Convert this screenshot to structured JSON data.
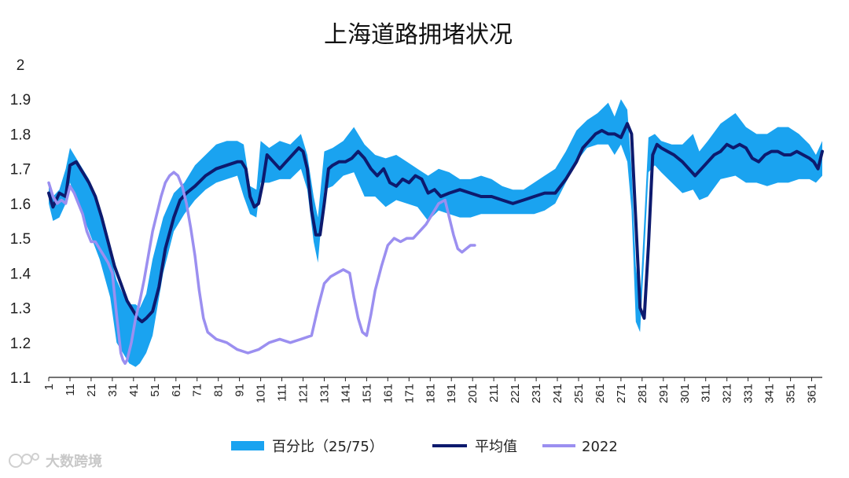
{
  "chart_data": {
    "type": "line",
    "title": "上海道路拥堵状况",
    "xlabel": "",
    "ylabel": "",
    "x_range": [
      1,
      366
    ],
    "ylim": [
      1.1,
      2.0
    ],
    "y_ticks": [
      "1.1",
      "1.2",
      "1.3",
      "1.4",
      "1.5",
      "1.6",
      "1.7",
      "1.8",
      "1.9",
      "2"
    ],
    "x_ticks": [
      "1",
      "11",
      "21",
      "31",
      "41",
      "51",
      "61",
      "71",
      "81",
      "91",
      "101",
      "111",
      "121",
      "131",
      "141",
      "151",
      "161",
      "171",
      "181",
      "191",
      "201",
      "211",
      "221",
      "231",
      "241",
      "251",
      "261",
      "271",
      "281",
      "291",
      "301",
      "311",
      "321",
      "331",
      "341",
      "351",
      "361"
    ],
    "grid": false,
    "legend_position": "bottom",
    "series": [
      {
        "name": "百分比（25/75）",
        "kind": "band",
        "color": "#1aa3f0",
        "x": [
          1,
          3,
          6,
          9,
          11,
          15,
          20,
          25,
          30,
          33,
          36,
          39,
          42,
          44,
          47,
          50,
          55,
          60,
          65,
          70,
          75,
          80,
          85,
          90,
          93,
          96,
          99,
          101,
          105,
          110,
          115,
          120,
          123,
          126,
          128,
          131,
          135,
          140,
          145,
          150,
          155,
          160,
          165,
          170,
          175,
          180,
          185,
          190,
          195,
          200,
          205,
          210,
          215,
          220,
          225,
          230,
          235,
          240,
          245,
          250,
          255,
          260,
          265,
          268,
          271,
          274,
          276,
          278,
          280,
          282,
          284,
          287,
          290,
          295,
          300,
          305,
          308,
          312,
          318,
          325,
          330,
          335,
          340,
          345,
          350,
          355,
          360,
          363,
          366
        ],
        "upper": [
          1.66,
          1.62,
          1.64,
          1.7,
          1.76,
          1.72,
          1.67,
          1.58,
          1.45,
          1.38,
          1.34,
          1.31,
          1.31,
          1.3,
          1.34,
          1.44,
          1.56,
          1.63,
          1.66,
          1.71,
          1.74,
          1.77,
          1.78,
          1.78,
          1.77,
          1.65,
          1.64,
          1.78,
          1.76,
          1.78,
          1.77,
          1.8,
          1.74,
          1.62,
          1.56,
          1.75,
          1.76,
          1.78,
          1.82,
          1.77,
          1.74,
          1.73,
          1.74,
          1.72,
          1.7,
          1.68,
          1.7,
          1.69,
          1.67,
          1.67,
          1.68,
          1.67,
          1.65,
          1.64,
          1.64,
          1.66,
          1.68,
          1.7,
          1.75,
          1.81,
          1.84,
          1.86,
          1.89,
          1.85,
          1.9,
          1.87,
          1.7,
          1.42,
          1.32,
          1.55,
          1.79,
          1.8,
          1.78,
          1.77,
          1.77,
          1.8,
          1.75,
          1.78,
          1.83,
          1.86,
          1.82,
          1.8,
          1.8,
          1.82,
          1.82,
          1.8,
          1.77,
          1.74,
          1.78
        ],
        "lower": [
          1.6,
          1.55,
          1.56,
          1.6,
          1.66,
          1.6,
          1.52,
          1.44,
          1.33,
          1.2,
          1.17,
          1.14,
          1.13,
          1.14,
          1.17,
          1.22,
          1.4,
          1.52,
          1.57,
          1.61,
          1.64,
          1.66,
          1.67,
          1.68,
          1.62,
          1.57,
          1.56,
          1.66,
          1.66,
          1.67,
          1.67,
          1.7,
          1.64,
          1.49,
          1.43,
          1.64,
          1.65,
          1.68,
          1.69,
          1.62,
          1.62,
          1.59,
          1.61,
          1.6,
          1.59,
          1.55,
          1.58,
          1.57,
          1.56,
          1.56,
          1.57,
          1.57,
          1.57,
          1.57,
          1.57,
          1.57,
          1.58,
          1.6,
          1.66,
          1.72,
          1.76,
          1.77,
          1.77,
          1.74,
          1.77,
          1.72,
          1.58,
          1.26,
          1.23,
          1.45,
          1.69,
          1.71,
          1.69,
          1.66,
          1.63,
          1.64,
          1.61,
          1.62,
          1.67,
          1.68,
          1.66,
          1.66,
          1.65,
          1.66,
          1.66,
          1.67,
          1.67,
          1.66,
          1.68
        ]
      },
      {
        "name": "平均值",
        "kind": "line",
        "color": "#0d1a6e",
        "x": [
          1,
          3,
          6,
          9,
          11,
          14,
          17,
          20,
          23,
          26,
          29,
          32,
          35,
          38,
          41,
          43,
          45,
          47,
          50,
          53,
          56,
          60,
          63,
          66,
          70,
          75,
          80,
          85,
          90,
          92,
          94,
          96,
          98,
          100,
          102,
          104,
          107,
          110,
          113,
          116,
          119,
          121,
          123,
          125,
          127,
          129,
          131,
          133,
          135,
          138,
          141,
          144,
          147,
          150,
          153,
          156,
          159,
          162,
          165,
          168,
          171,
          174,
          177,
          180,
          183,
          186,
          190,
          195,
          200,
          205,
          210,
          215,
          220,
          225,
          230,
          235,
          240,
          245,
          250,
          253,
          256,
          259,
          262,
          265,
          268,
          271,
          274,
          276,
          278,
          280,
          282,
          284,
          286,
          288,
          290,
          293,
          296,
          300,
          303,
          306,
          309,
          312,
          315,
          318,
          321,
          324,
          327,
          330,
          333,
          336,
          339,
          342,
          345,
          348,
          351,
          354,
          357,
          360,
          362,
          364,
          366
        ],
        "y": [
          1.63,
          1.59,
          1.63,
          1.62,
          1.71,
          1.72,
          1.69,
          1.66,
          1.62,
          1.56,
          1.49,
          1.42,
          1.37,
          1.32,
          1.29,
          1.27,
          1.26,
          1.27,
          1.29,
          1.36,
          1.47,
          1.56,
          1.61,
          1.63,
          1.65,
          1.68,
          1.7,
          1.71,
          1.72,
          1.72,
          1.7,
          1.62,
          1.59,
          1.6,
          1.66,
          1.74,
          1.72,
          1.7,
          1.72,
          1.74,
          1.76,
          1.75,
          1.7,
          1.58,
          1.51,
          1.51,
          1.6,
          1.7,
          1.71,
          1.72,
          1.72,
          1.73,
          1.75,
          1.73,
          1.7,
          1.68,
          1.7,
          1.66,
          1.65,
          1.67,
          1.66,
          1.68,
          1.67,
          1.63,
          1.64,
          1.62,
          1.63,
          1.64,
          1.63,
          1.62,
          1.62,
          1.61,
          1.6,
          1.61,
          1.62,
          1.63,
          1.63,
          1.67,
          1.72,
          1.76,
          1.78,
          1.8,
          1.81,
          1.8,
          1.8,
          1.79,
          1.83,
          1.8,
          1.55,
          1.3,
          1.27,
          1.48,
          1.74,
          1.77,
          1.76,
          1.75,
          1.74,
          1.72,
          1.7,
          1.68,
          1.7,
          1.72,
          1.74,
          1.75,
          1.77,
          1.76,
          1.77,
          1.76,
          1.73,
          1.72,
          1.74,
          1.75,
          1.75,
          1.74,
          1.74,
          1.75,
          1.74,
          1.73,
          1.72,
          1.7,
          1.75
        ]
      },
      {
        "name": "2022",
        "kind": "line",
        "color": "#9b8ff0",
        "x": [
          1,
          3,
          5,
          7,
          9,
          11,
          13,
          15,
          17,
          19,
          21,
          23,
          25,
          27,
          29,
          31,
          33,
          35,
          36,
          37,
          38,
          40,
          42,
          44,
          46,
          48,
          50,
          52,
          54,
          56,
          58,
          60,
          62,
          64,
          66,
          68,
          70,
          72,
          74,
          76,
          80,
          85,
          90,
          95,
          100,
          105,
          110,
          115,
          120,
          125,
          128,
          131,
          134,
          137,
          140,
          143,
          145,
          147,
          149,
          151,
          153,
          155,
          158,
          161,
          164,
          167,
          170,
          173,
          176,
          179,
          182,
          185,
          188,
          190,
          192,
          194,
          196,
          198,
          200,
          202
        ],
        "y": [
          1.66,
          1.62,
          1.6,
          1.61,
          1.6,
          1.65,
          1.63,
          1.6,
          1.57,
          1.52,
          1.49,
          1.49,
          1.47,
          1.45,
          1.43,
          1.4,
          1.28,
          1.17,
          1.15,
          1.14,
          1.15,
          1.2,
          1.27,
          1.32,
          1.38,
          1.45,
          1.52,
          1.57,
          1.62,
          1.66,
          1.68,
          1.69,
          1.68,
          1.65,
          1.6,
          1.53,
          1.45,
          1.35,
          1.27,
          1.23,
          1.21,
          1.2,
          1.18,
          1.17,
          1.18,
          1.2,
          1.21,
          1.2,
          1.21,
          1.22,
          1.3,
          1.37,
          1.39,
          1.4,
          1.41,
          1.4,
          1.33,
          1.27,
          1.23,
          1.22,
          1.28,
          1.35,
          1.42,
          1.48,
          1.5,
          1.49,
          1.5,
          1.5,
          1.52,
          1.54,
          1.57,
          1.6,
          1.61,
          1.56,
          1.51,
          1.47,
          1.46,
          1.47,
          1.48,
          1.48
        ]
      }
    ]
  },
  "watermark": "大数跨境"
}
